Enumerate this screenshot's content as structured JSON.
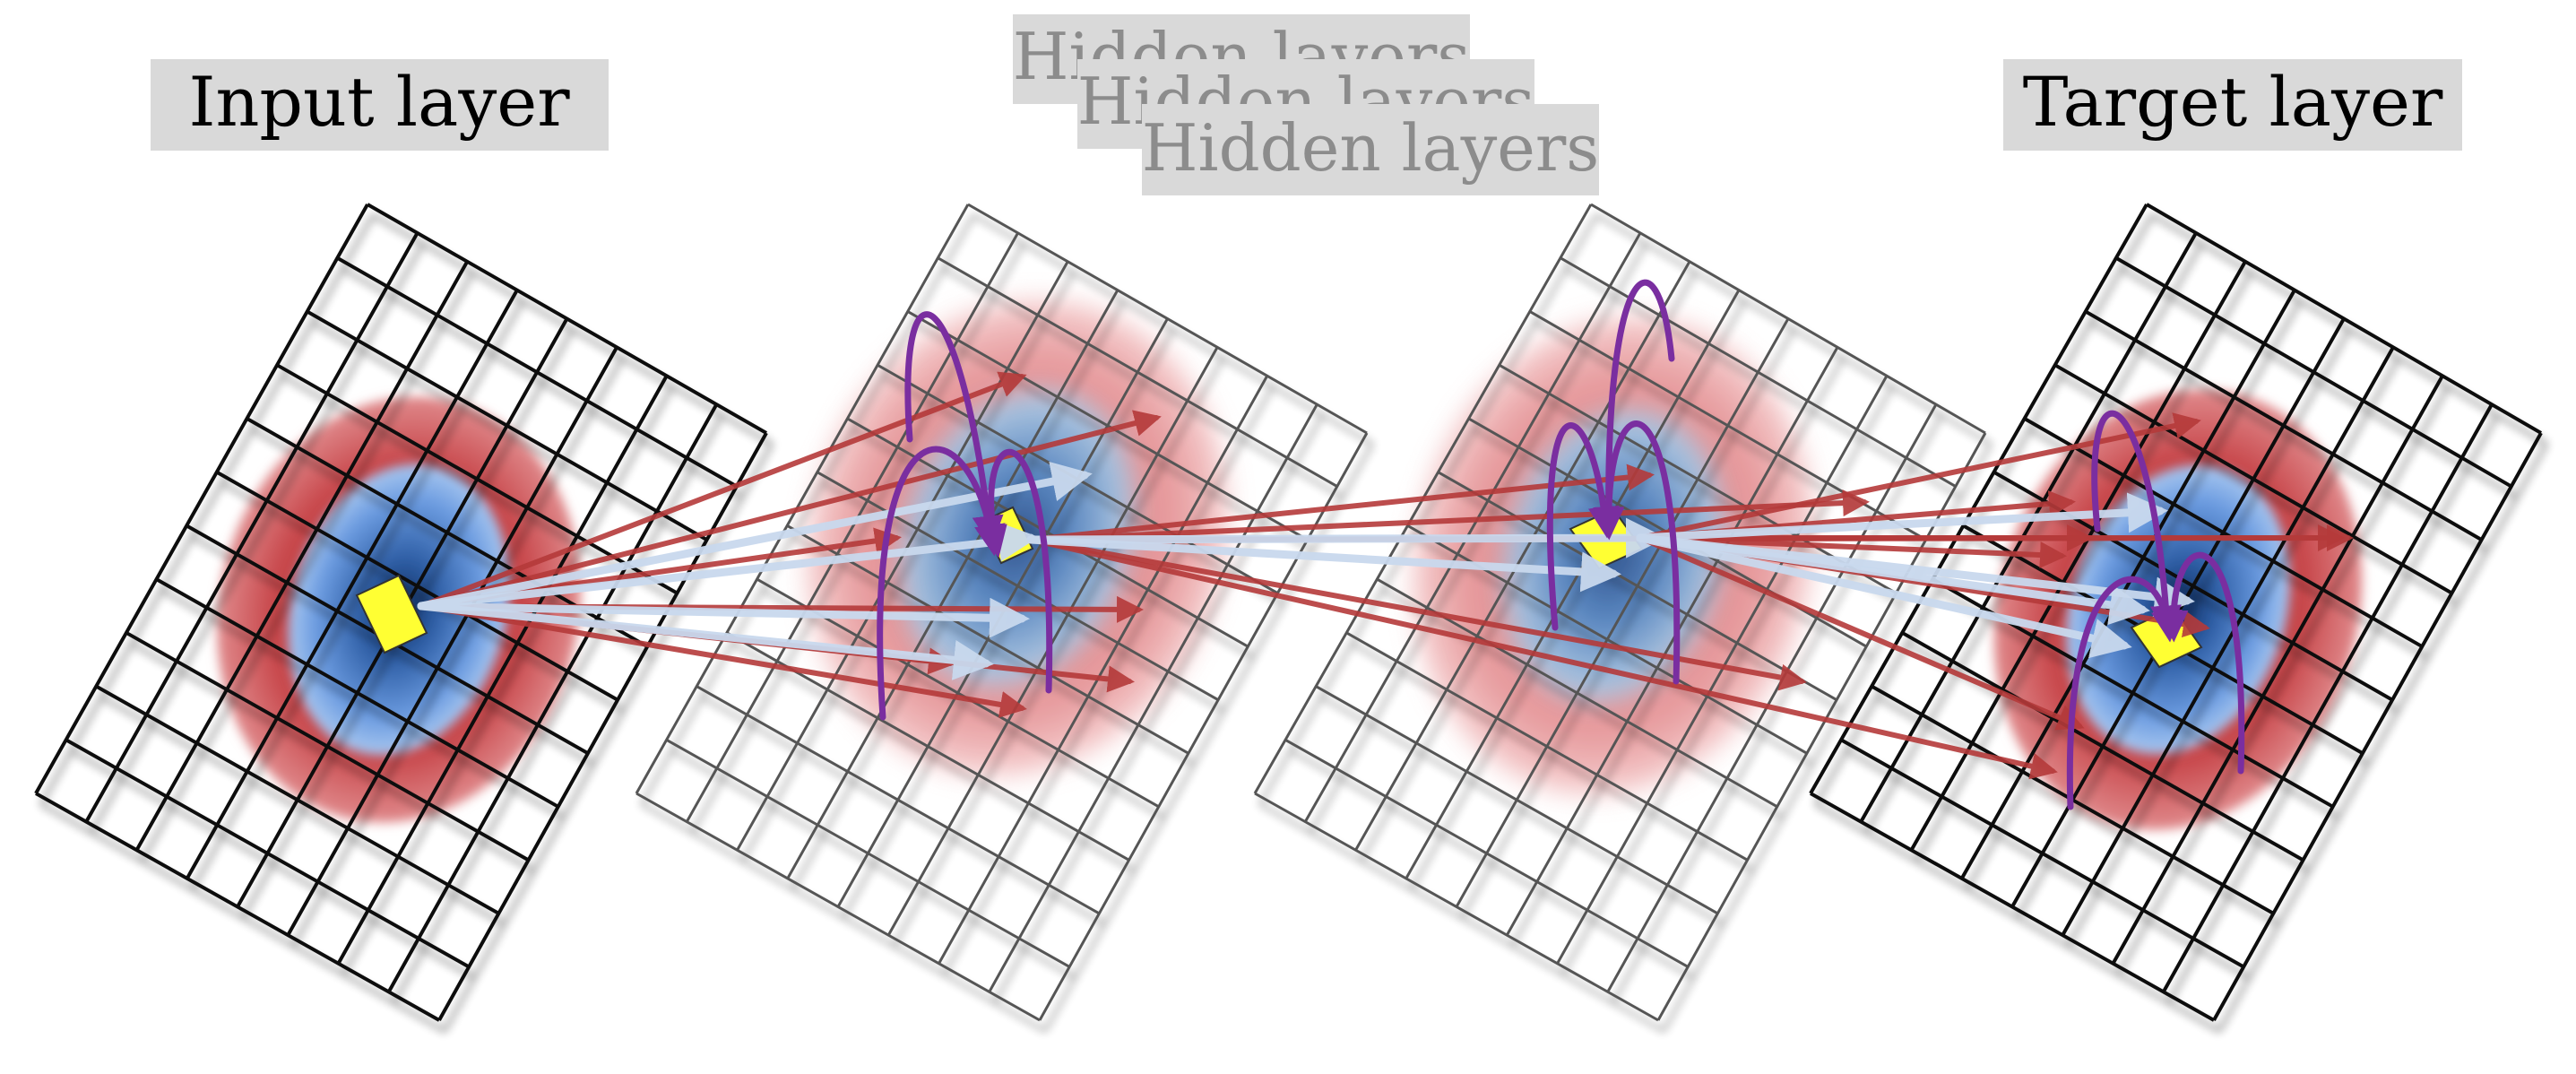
{
  "labels": {
    "input": "Input layer",
    "hidden_1": "Hidden layers",
    "hidden_2": "Hidden layers",
    "hidden_3": "Hidden layers",
    "target": "Target layer"
  },
  "colors": {
    "label_box": "#d9d9d9",
    "label_text": "#000000",
    "hidden_label_text": "#8c8c8c",
    "outer_field": "#c8383c",
    "inner_field": "#4f87d0",
    "inner_core": "#1a3f7a",
    "unit": "#ffff33",
    "grid_input": "#111111",
    "grid_hidden": "#555555",
    "arrow_red": "#b53a3a",
    "arrow_light": "#c9d9ee",
    "lateral_arc": "#7a2ea0"
  }
}
